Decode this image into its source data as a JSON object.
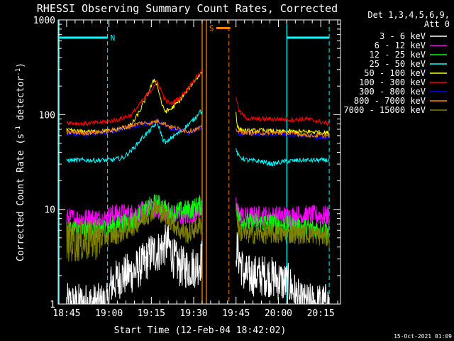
{
  "chart_data": {
    "type": "line",
    "title": "RHESSI Observing Summary Count Rates, Corrected",
    "xlabel": "Start Time (12-Feb-04 18:42:02)",
    "ylabel": "Corrected Count Rate (s",
    "ylabel_sup1": "-1",
    "ylabel_mid": " detector",
    "ylabel_sup2": "-1",
    "ylabel_end": ")",
    "x_unit": "minutes after 18:42:02",
    "xlim": [
      0,
      100
    ],
    "ylim": [
      1,
      1000
    ],
    "yscale": "log",
    "yticks": [
      {
        "value": 1,
        "label": "1"
      },
      {
        "value": 10,
        "label": "10"
      },
      {
        "value": 100,
        "label": "100"
      },
      {
        "value": 1000,
        "label": "1000"
      }
    ],
    "xticks": [
      {
        "value": 3,
        "label": "18:45"
      },
      {
        "value": 18,
        "label": "19:00"
      },
      {
        "value": 33,
        "label": "19:15"
      },
      {
        "value": 48,
        "label": "19:30"
      },
      {
        "value": 63,
        "label": "19:45"
      },
      {
        "value": 78,
        "label": "20:00"
      },
      {
        "value": 93,
        "label": "20:15"
      }
    ],
    "legend": {
      "header1": "Det 1,3,4,5,6,9,",
      "header2": "Att 0",
      "placement": "right"
    },
    "markers": [
      {
        "type": "night",
        "label": "N",
        "x": [
          0,
          17.5
        ],
        "y": 650,
        "color": "#00ffff"
      },
      {
        "type": "night",
        "label": "",
        "x": [
          81,
          96
        ],
        "y": 650,
        "color": "#00ffff"
      },
      {
        "type": "saa",
        "label": "S",
        "x": [
          56,
          61
        ],
        "y": 820,
        "color": "#ff8000"
      }
    ],
    "vlines_solid": [
      {
        "x": 0.3,
        "color": "#00ffff"
      },
      {
        "x": 51,
        "color": "#ff8000"
      },
      {
        "x": 52.5,
        "color": "#ff8000"
      },
      {
        "x": 81,
        "color": "#00ffff"
      }
    ],
    "vlines_dashed": [
      {
        "x": 17.5,
        "color": "#00ffff"
      },
      {
        "x": 60.5,
        "color": "#ff8000"
      },
      {
        "x": 96,
        "color": "#00ffff"
      }
    ],
    "segments": [
      [
        3,
        51
      ],
      [
        63,
        96
      ]
    ],
    "series": [
      {
        "name": "3 - 6 keV",
        "color": "#ffffff",
        "points": [
          [
            3,
            1
          ],
          [
            12,
            1
          ],
          [
            18,
            1
          ],
          [
            18.5,
            1.6
          ],
          [
            23,
            2
          ],
          [
            27,
            2.2
          ],
          [
            29,
            2.5
          ],
          [
            31,
            2.8
          ],
          [
            33,
            3.5
          ],
          [
            35,
            3.5
          ],
          [
            37,
            4
          ],
          [
            39,
            4.3
          ],
          [
            41,
            3
          ],
          [
            43,
            2.5
          ],
          [
            46,
            2.4
          ],
          [
            49,
            2.5
          ],
          [
            51,
            3
          ],
          [
            63,
            4
          ],
          [
            66,
            2
          ],
          [
            70,
            2
          ],
          [
            74,
            2
          ],
          [
            78,
            1.8
          ],
          [
            82,
            1.6
          ],
          [
            86,
            1
          ],
          [
            96,
            1
          ]
        ]
      },
      {
        "name": "6 - 12 keV",
        "color": "#ff00ff",
        "points": [
          [
            3,
            8
          ],
          [
            17.5,
            8
          ],
          [
            18,
            8.7
          ],
          [
            22,
            9
          ],
          [
            26,
            9
          ],
          [
            30,
            9.5
          ],
          [
            34,
            10.5
          ],
          [
            38,
            9
          ],
          [
            42,
            8.5
          ],
          [
            46,
            8.5
          ],
          [
            49,
            9.5
          ],
          [
            51,
            10
          ],
          [
            63,
            11
          ],
          [
            64,
            9
          ],
          [
            66,
            8.3
          ],
          [
            70,
            8.5
          ],
          [
            76,
            8.5
          ],
          [
            82,
            8.5
          ],
          [
            86,
            8.7
          ],
          [
            96,
            8.5
          ]
        ]
      },
      {
        "name": "12 - 25 keV",
        "color": "#00ff00",
        "points": [
          [
            3,
            6.2
          ],
          [
            10,
            6
          ],
          [
            18,
            6.5
          ],
          [
            22,
            7
          ],
          [
            26,
            7.5
          ],
          [
            30,
            9
          ],
          [
            33,
            11
          ],
          [
            35,
            11.5
          ],
          [
            37,
            10.5
          ],
          [
            40,
            9
          ],
          [
            43,
            9.5
          ],
          [
            47,
            10
          ],
          [
            50,
            11
          ],
          [
            51,
            11
          ],
          [
            63,
            12
          ],
          [
            64,
            8
          ],
          [
            67,
            7.2
          ],
          [
            72,
            7.2
          ],
          [
            78,
            7
          ],
          [
            84,
            6.5
          ],
          [
            90,
            6.3
          ],
          [
            96,
            6
          ]
        ]
      },
      {
        "name": "25 - 50 keV",
        "color": "#00ffff",
        "points": [
          [
            3,
            33
          ],
          [
            10,
            33
          ],
          [
            18,
            33
          ],
          [
            23,
            35
          ],
          [
            27,
            45
          ],
          [
            30,
            58
          ],
          [
            33,
            70
          ],
          [
            35,
            83
          ],
          [
            36,
            70
          ],
          [
            37,
            55
          ],
          [
            38.5,
            50
          ],
          [
            40,
            57
          ],
          [
            43,
            65
          ],
          [
            46,
            78
          ],
          [
            49,
            95
          ],
          [
            50,
            110
          ],
          [
            51,
            105
          ],
          [
            63,
            42
          ],
          [
            64,
            36
          ],
          [
            67,
            33
          ],
          [
            72,
            32
          ],
          [
            76,
            30
          ],
          [
            80,
            32
          ],
          [
            86,
            33
          ],
          [
            92,
            33
          ],
          [
            96,
            33
          ]
        ]
      },
      {
        "name": "50 - 100 keV",
        "color": "#ffff00",
        "points": [
          [
            3,
            68
          ],
          [
            8,
            66
          ],
          [
            14,
            66
          ],
          [
            18,
            67
          ],
          [
            22,
            70
          ],
          [
            26,
            78
          ],
          [
            29,
            110
          ],
          [
            31,
            150
          ],
          [
            33,
            200
          ],
          [
            34,
            235
          ],
          [
            35,
            210
          ],
          [
            36,
            160
          ],
          [
            37,
            120
          ],
          [
            38,
            108
          ],
          [
            40,
            115
          ],
          [
            43,
            140
          ],
          [
            46,
            185
          ],
          [
            48,
            225
          ],
          [
            50,
            260
          ],
          [
            51,
            285
          ],
          [
            63,
            105
          ],
          [
            63.5,
            75
          ],
          [
            64,
            70
          ],
          [
            67,
            67
          ],
          [
            72,
            68
          ],
          [
            78,
            66
          ],
          [
            84,
            66
          ],
          [
            90,
            66
          ],
          [
            96,
            64
          ]
        ]
      },
      {
        "name": "100 - 300 keV",
        "color": "#ff0000",
        "points": [
          [
            3,
            83
          ],
          [
            8,
            80
          ],
          [
            14,
            82
          ],
          [
            18,
            85
          ],
          [
            22,
            90
          ],
          [
            26,
            100
          ],
          [
            29,
            130
          ],
          [
            31,
            155
          ],
          [
            33,
            180
          ],
          [
            34,
            205
          ],
          [
            35,
            220
          ],
          [
            36,
            195
          ],
          [
            37,
            165
          ],
          [
            38,
            140
          ],
          [
            40,
            130
          ],
          [
            43,
            150
          ],
          [
            46,
            190
          ],
          [
            48,
            230
          ],
          [
            50,
            270
          ],
          [
            51,
            290
          ],
          [
            63,
            160
          ],
          [
            64,
            110
          ],
          [
            66,
            95
          ],
          [
            68,
            90
          ],
          [
            72,
            90
          ],
          [
            78,
            90
          ],
          [
            84,
            88
          ],
          [
            88,
            90
          ],
          [
            92,
            85
          ],
          [
            96,
            80
          ]
        ]
      },
      {
        "name": "300 - 800 keV",
        "color": "#0000ff",
        "points": [
          [
            3,
            63
          ],
          [
            10,
            62
          ],
          [
            18,
            65
          ],
          [
            24,
            72
          ],
          [
            29,
            78
          ],
          [
            33,
            80
          ],
          [
            35,
            84
          ],
          [
            37,
            80
          ],
          [
            40,
            72
          ],
          [
            43,
            68
          ],
          [
            46,
            65
          ],
          [
            49,
            68
          ],
          [
            51,
            75
          ],
          [
            63,
            68
          ],
          [
            64,
            64
          ],
          [
            68,
            62
          ],
          [
            74,
            62
          ],
          [
            80,
            62
          ],
          [
            86,
            60
          ],
          [
            90,
            58
          ],
          [
            96,
            56
          ]
        ]
      },
      {
        "name": "800 - 7000 keV",
        "color": "#ff8000",
        "points": [
          [
            3,
            65
          ],
          [
            10,
            64
          ],
          [
            18,
            67
          ],
          [
            24,
            74
          ],
          [
            29,
            81
          ],
          [
            33,
            82
          ],
          [
            35,
            86
          ],
          [
            37,
            82
          ],
          [
            40,
            74
          ],
          [
            43,
            70
          ],
          [
            46,
            67
          ],
          [
            49,
            70
          ],
          [
            51,
            73
          ],
          [
            63,
            70
          ],
          [
            64,
            66
          ],
          [
            68,
            64
          ],
          [
            74,
            64
          ],
          [
            80,
            64
          ],
          [
            86,
            62
          ],
          [
            90,
            60
          ],
          [
            96,
            60
          ]
        ]
      },
      {
        "name": "7000 - 15000 keV",
        "color": "#808000",
        "points": [
          [
            3,
            4.6
          ],
          [
            10,
            4.6
          ],
          [
            18,
            5.2
          ],
          [
            22,
            5.6
          ],
          [
            26,
            6.5
          ],
          [
            30,
            8
          ],
          [
            33,
            9.5
          ],
          [
            35,
            10
          ],
          [
            37,
            9
          ],
          [
            40,
            7.5
          ],
          [
            43,
            6
          ],
          [
            46,
            5.5
          ],
          [
            49,
            6.5
          ],
          [
            51,
            7
          ],
          [
            63,
            10
          ],
          [
            64,
            6
          ],
          [
            66,
            5.5
          ],
          [
            72,
            5.5
          ],
          [
            78,
            5.5
          ],
          [
            84,
            5.5
          ],
          [
            90,
            5.5
          ],
          [
            96,
            5
          ]
        ]
      }
    ]
  },
  "footer": {
    "timestamp": "15-Oct-2021 01:09"
  }
}
